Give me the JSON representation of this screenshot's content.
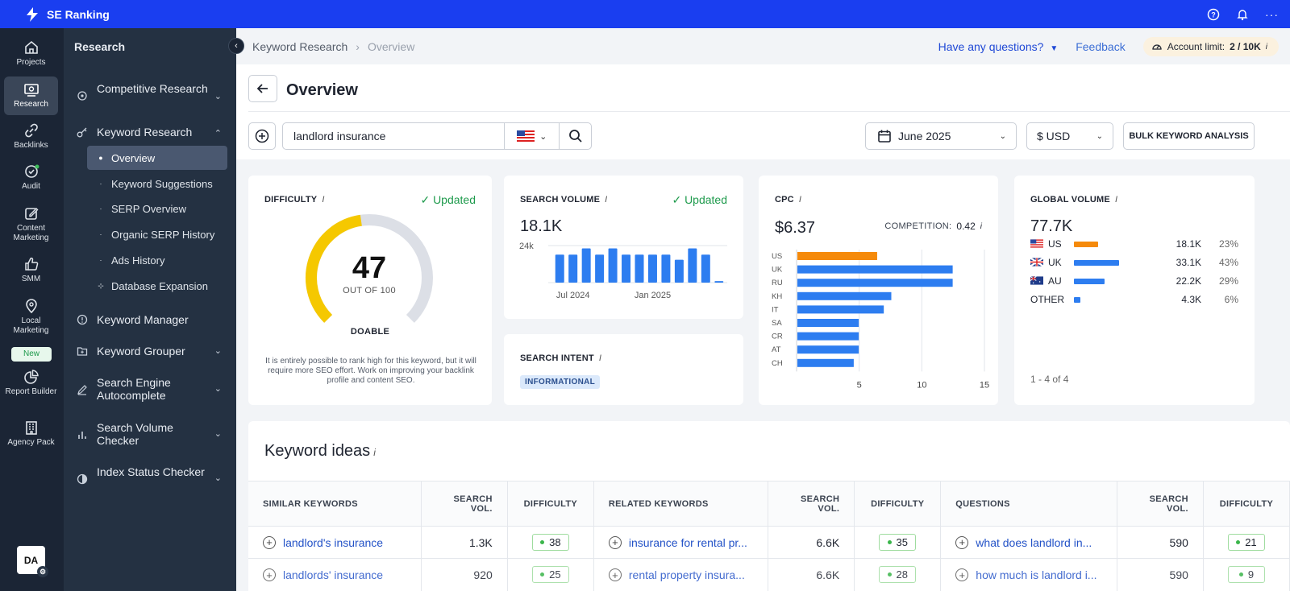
{
  "app": {
    "name": "SE Ranking"
  },
  "rail": {
    "items": [
      {
        "label": "Projects"
      },
      {
        "label": "Research"
      },
      {
        "label": "Backlinks"
      },
      {
        "label": "Audit"
      },
      {
        "label": "Content Marketing"
      },
      {
        "label": "SMM"
      },
      {
        "label": "Local Marketing"
      },
      {
        "label": "Report Builder"
      },
      {
        "label": "Agency Pack"
      }
    ],
    "new_badge": "New",
    "avatar": "DA"
  },
  "panel": {
    "title": "Research",
    "items": [
      {
        "label": "Competitive Research"
      },
      {
        "label": "Keyword Research"
      },
      {
        "label": "Keyword Manager"
      },
      {
        "label": "Keyword Grouper"
      },
      {
        "label": "Search Engine Autocomplete"
      },
      {
        "label": "Search Volume Checker"
      },
      {
        "label": "Index Status Checker"
      }
    ],
    "sub_items": [
      {
        "label": "Overview"
      },
      {
        "label": "Keyword Suggestions"
      },
      {
        "label": "SERP Overview"
      },
      {
        "label": "Organic SERP History"
      },
      {
        "label": "Ads History"
      },
      {
        "label": "Database Expansion"
      }
    ]
  },
  "breadcrumb": {
    "root": "Keyword Research",
    "current": "Overview"
  },
  "top_actions": {
    "questions": "Have any questions?",
    "feedback": "Feedback",
    "limit_label": "Account limit:",
    "limit_value": "2 / 10K"
  },
  "page": {
    "title": "Overview"
  },
  "search": {
    "query": "landlord insurance"
  },
  "filters": {
    "date": "June 2025",
    "currency": "$ USD",
    "bulk": "BULK KEYWORD ANALYSIS"
  },
  "difficulty": {
    "label": "DIFFICULTY",
    "updated": "Updated",
    "value": 47,
    "max_label": "OUT OF 100",
    "status": "DOABLE",
    "description": "It is entirely possible to rank high for this keyword, but it will require more SEO effort. Work on improving your backlink profile and content SEO.",
    "color": "#f5c800"
  },
  "volume": {
    "label": "SEARCH VOLUME",
    "updated": "Updated",
    "value": "18.1K",
    "y_tick": "24k",
    "x_labels": [
      "Jul 2024",
      "Jan 2025"
    ]
  },
  "intent": {
    "label": "SEARCH INTENT",
    "badge": "INFORMATIONAL"
  },
  "cpc": {
    "label": "CPC",
    "value": "$6.37",
    "competition_label": "COMPETITION:",
    "competition_value": "0.42"
  },
  "global": {
    "label": "GLOBAL VOLUME",
    "value": "77.7K",
    "rows": [
      {
        "code": "US",
        "volume": "18.1K",
        "pct": "23%",
        "share": 0.23,
        "color": "#f58a0b"
      },
      {
        "code": "UK",
        "volume": "33.1K",
        "pct": "43%",
        "share": 0.43,
        "color": "#2d7df0"
      },
      {
        "code": "AU",
        "volume": "22.2K",
        "pct": "29%",
        "share": 0.29,
        "color": "#2d7df0"
      },
      {
        "code": "OTHER",
        "volume": "4.3K",
        "pct": "6%",
        "share": 0.06,
        "color": "#2d7df0"
      }
    ],
    "footer": "1 - 4 of 4"
  },
  "ideas": {
    "title": "Keyword ideas",
    "headers": {
      "similar": "SIMILAR KEYWORDS",
      "related": "RELATED KEYWORDS",
      "questions": "QUESTIONS",
      "vol": "SEARCH VOL.",
      "diff": "DIFFICULTY"
    },
    "rows": [
      {
        "similar": "landlord's insurance",
        "similar_vol": "1.3K",
        "similar_diff": "38",
        "related": "insurance for rental pr...",
        "related_vol": "6.6K",
        "related_diff": "35",
        "question": "what does landlord in...",
        "question_vol": "590",
        "question_diff": "21"
      },
      {
        "similar": "landlords' insurance",
        "similar_vol": "920",
        "similar_diff": "25",
        "related": "rental property insura...",
        "related_vol": "6.6K",
        "related_diff": "28",
        "question": "how much is landlord i...",
        "question_vol": "590",
        "question_diff": "9"
      }
    ]
  },
  "chart_data": [
    {
      "type": "bar",
      "title": "SEARCH VOLUME",
      "categories": [
        "2024-06",
        "2024-07",
        "2024-08",
        "2024-09",
        "2024-10",
        "2024-11",
        "2024-12",
        "2025-01",
        "2025-02",
        "2025-03",
        "2025-04",
        "2025-05",
        "2025-06"
      ],
      "values": [
        18.1,
        18.1,
        22.2,
        18.1,
        22.2,
        18.1,
        18.1,
        18.1,
        18.1,
        14.8,
        22.2,
        18.1,
        1.0
      ],
      "tick_labels": [
        "Jul 2024",
        "Jan 2025"
      ],
      "ylim": [
        0,
        24
      ],
      "color": "#2d7df0"
    },
    {
      "type": "bar",
      "orientation": "horizontal",
      "title": "CPC",
      "categories": [
        "US",
        "UK",
        "RU",
        "KH",
        "IT",
        "SA",
        "CR",
        "AT",
        "CH"
      ],
      "values": [
        6.37,
        12.4,
        12.4,
        7.5,
        6.9,
        4.9,
        4.9,
        4.9,
        4.5
      ],
      "highlight": "US",
      "highlight_color": "#f58a0b",
      "color": "#2d7df0",
      "x_ticks": [
        5,
        10,
        15
      ],
      "xlim": [
        0,
        15
      ]
    }
  ]
}
